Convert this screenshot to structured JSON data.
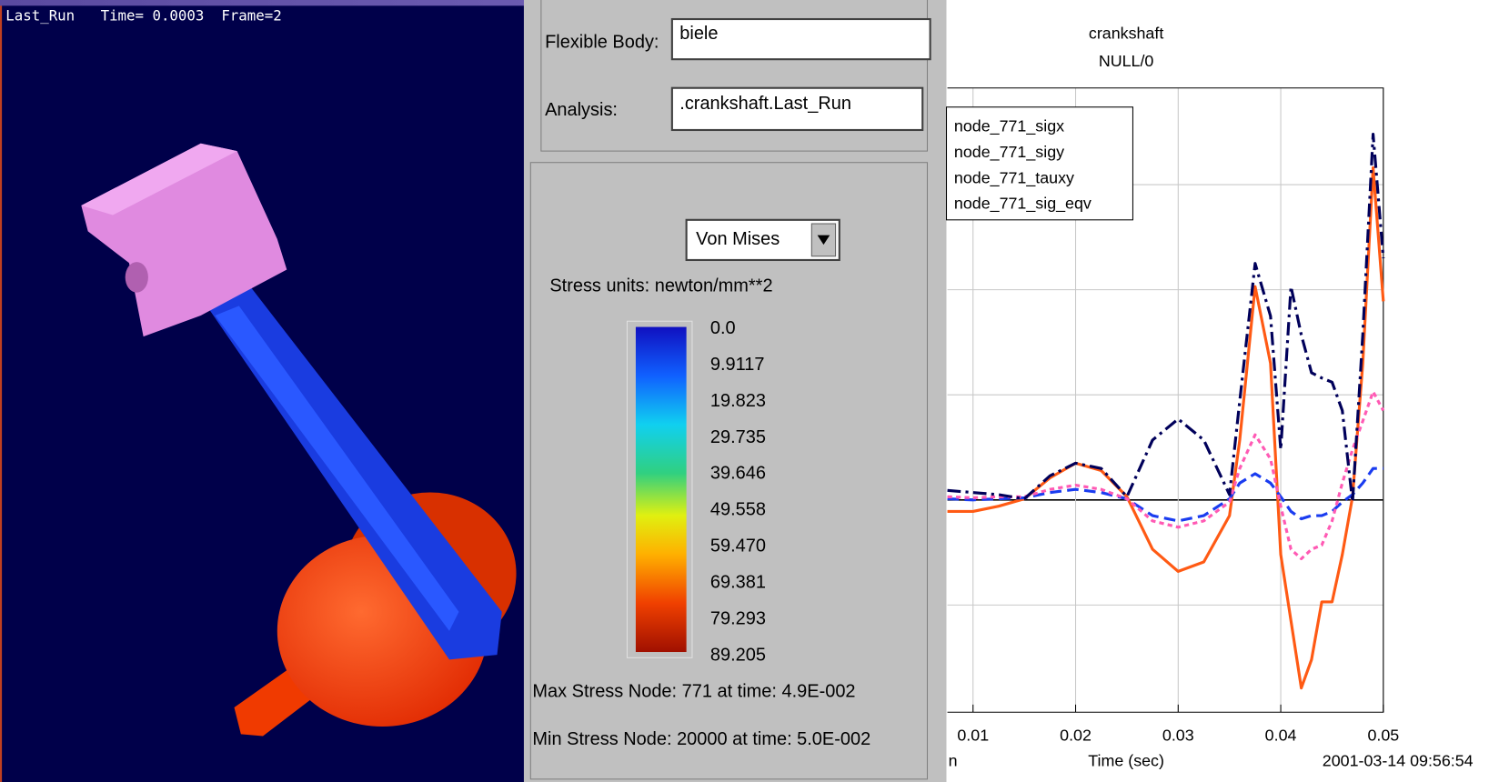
{
  "viewport": {
    "status": "Last_Run   Time= 0.0003  Frame=2"
  },
  "panel": {
    "flexible_body_label": "Flexible Body:",
    "flexible_body": "biele",
    "analysis_label": "Analysis:",
    "analysis": ".crankshaft.Last_Run",
    "stress_type": "Von Mises",
    "stress_units": "Stress units: newton/mm**2",
    "legend_levels": [
      "0.0",
      "9.9117",
      "19.823",
      "29.735",
      "39.646",
      "49.558",
      "59.470",
      "69.381",
      "79.293",
      "89.205"
    ],
    "max_stress": "Max Stress Node: 771 at time: 4.9E-002",
    "min_stress": "Min Stress Node: 20000 at time: 5.0E-002"
  },
  "plot": {
    "type": "line",
    "title": "crankshaft",
    "subtitle": "NULL/0",
    "x_label": "Time (sec)",
    "timestamp": "2001-03-14 09:56:54",
    "cut_label": "n",
    "x": [
      0.0075,
      0.01,
      0.0125,
      0.015,
      0.0175,
      0.02,
      0.0225,
      0.025,
      0.0275,
      0.03,
      0.0325,
      0.035,
      0.036,
      0.0375,
      0.039,
      0.04,
      0.041,
      0.042,
      0.043,
      0.044,
      0.045,
      0.046,
      0.047,
      0.048,
      0.049,
      0.05
    ],
    "xlim": [
      0.0075,
      0.05
    ],
    "xticks": [
      0.01,
      0.02,
      0.03,
      0.04,
      0.05
    ],
    "ylim": [
      -202,
      392
    ],
    "ygrid": [
      -100,
      0,
      100,
      200,
      300
    ],
    "series": [
      {
        "name": "node_771_sigx",
        "color": "#ff5a14",
        "dash": "solid",
        "values": [
          -11,
          -11,
          -6,
          1,
          21,
          35,
          28,
          3,
          -47,
          -68,
          -59,
          -15,
          57,
          203,
          130,
          -52,
          -115,
          -179,
          -152,
          -97,
          -97,
          -52,
          3,
          130,
          316,
          189
        ]
      },
      {
        "name": "node_771_sigy",
        "color": "#1a3cf0",
        "dash": "dashed",
        "values": [
          1,
          0,
          1,
          2,
          7,
          10,
          7,
          1,
          -15,
          -20,
          -15,
          1,
          16,
          25,
          16,
          3,
          -11,
          -18,
          -15,
          -15,
          -11,
          -2,
          5,
          16,
          30,
          30
        ]
      },
      {
        "name": "node_771_tauxy",
        "color": "#ff5ab4",
        "dash": "dotted",
        "values": [
          3,
          2,
          3,
          3,
          10,
          14,
          10,
          1,
          -20,
          -26,
          -20,
          -2,
          30,
          62,
          39,
          -6,
          -47,
          -56,
          -47,
          -43,
          -20,
          16,
          48,
          75,
          103,
          85
        ]
      },
      {
        "name": "node_771_sig_eqv",
        "color": "#00005a",
        "dash": "dashdot",
        "values": [
          9,
          7,
          5,
          1,
          23,
          35,
          30,
          3,
          57,
          77,
          57,
          5,
          94,
          225,
          175,
          48,
          203,
          157,
          121,
          116,
          112,
          85,
          -2,
          157,
          348,
          230
        ]
      }
    ]
  }
}
